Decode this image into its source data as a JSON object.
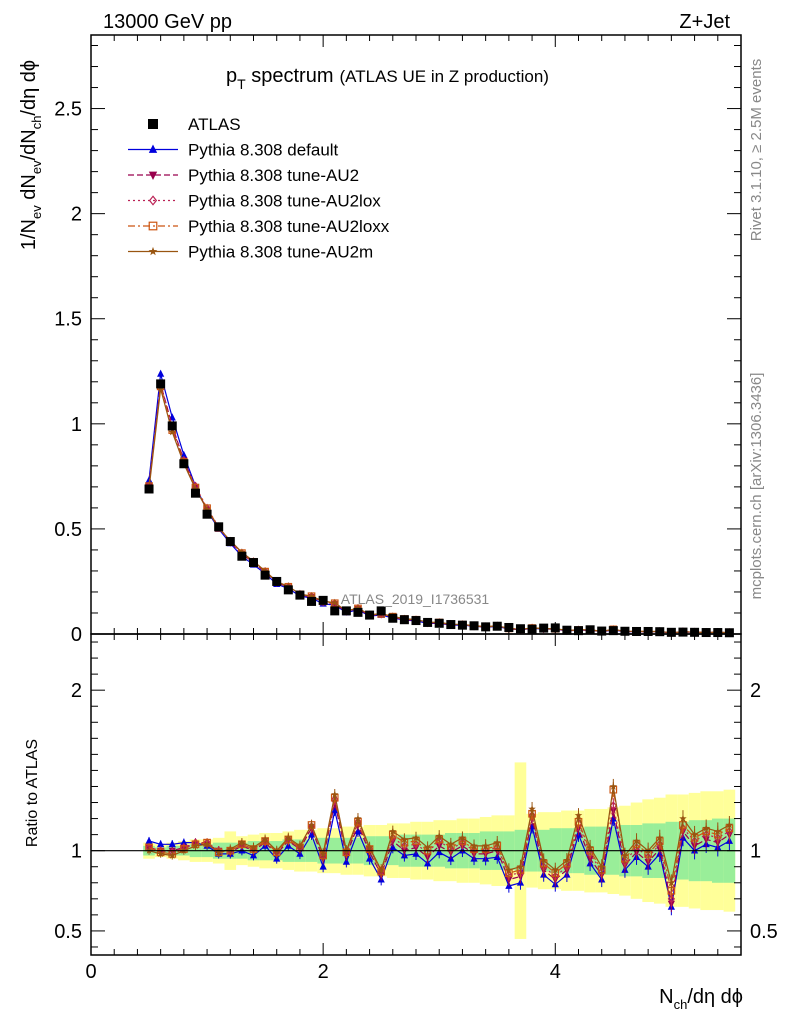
{
  "header": {
    "energy_label": "13000 GeV pp",
    "process_label": "Z+Jet",
    "rivet_label": "Rivet 3.1.10, ≥ 2.5M events",
    "mcplots_label": "mcplots.cern.ch [arXiv:1306.3436]",
    "analysis_id": "ATLAS_2019_I1736531"
  },
  "title": {
    "main": "p",
    "main_sub": "T",
    "main_rest": " spectrum",
    "paren": "(ATLAS UE in Z production)"
  },
  "axes": {
    "y_main_parts": [
      "1/N",
      "ev",
      " dN",
      "ev",
      "/dN",
      "ch",
      "/dη dϕ"
    ],
    "y_ratio": "Ratio to ATLAS",
    "x_parts": [
      "N",
      "ch",
      "/dη dϕ"
    ],
    "x_ticks": [
      "0",
      "2",
      "4"
    ],
    "y_main_ticks": [
      "0",
      "0.5",
      "1",
      "1.5",
      "2",
      "2.5"
    ],
    "y_ratio_ticks": [
      "0.5",
      "1",
      "2"
    ]
  },
  "legend": [
    {
      "label": "ATLAS",
      "color": "#000000",
      "marker": "square-filled",
      "line": "none"
    },
    {
      "label": "Pythia 8.308 default",
      "color": "#0000dd",
      "marker": "triangle-up",
      "line": "solid"
    },
    {
      "label": "Pythia 8.308 tune-AU2",
      "color": "#99004d",
      "marker": "triangle-down",
      "line": "dashed"
    },
    {
      "label": "Pythia 8.308 tune-AU2lox",
      "color": "#bb2255",
      "marker": "diamond-open",
      "line": "dotted"
    },
    {
      "label": "Pythia 8.308 tune-AU2loxx",
      "color": "#cc5511",
      "marker": "square-open",
      "line": "dashdot"
    },
    {
      "label": "Pythia 8.308 tune-AU2m",
      "color": "#995511",
      "marker": "star",
      "line": "solid"
    }
  ],
  "chart_data": {
    "type": "line",
    "x_range": [
      0,
      5.6
    ],
    "y_main_range": [
      0,
      2.85
    ],
    "y_ratio_range": [
      0.35,
      2.35
    ],
    "x": [
      0.5,
      0.6,
      0.7,
      0.8,
      0.9,
      1.0,
      1.1,
      1.2,
      1.3,
      1.4,
      1.5,
      1.6,
      1.7,
      1.8,
      1.9,
      2.0,
      2.1,
      2.2,
      2.3,
      2.4,
      2.5,
      2.6,
      2.7,
      2.8,
      2.9,
      3.0,
      3.1,
      3.2,
      3.3,
      3.4,
      3.5,
      3.6,
      3.7,
      3.8,
      3.9,
      4.0,
      4.1,
      4.2,
      4.3,
      4.4,
      4.5,
      4.6,
      4.7,
      4.8,
      4.9,
      5.0,
      5.1,
      5.2,
      5.3,
      5.4,
      5.5
    ],
    "atlas": [
      0.69,
      1.19,
      0.99,
      0.81,
      0.67,
      0.57,
      0.51,
      0.44,
      0.37,
      0.34,
      0.28,
      0.25,
      0.21,
      0.185,
      0.155,
      0.16,
      0.11,
      0.11,
      0.103,
      0.09,
      0.11,
      0.075,
      0.068,
      0.064,
      0.055,
      0.051,
      0.045,
      0.042,
      0.039,
      0.034,
      0.037,
      0.031,
      0.025,
      0.023,
      0.028,
      0.029,
      0.018,
      0.016,
      0.02,
      0.014,
      0.016,
      0.013,
      0.012,
      0.012,
      0.011,
      0.008,
      0.009,
      0.008,
      0.007,
      0.007,
      0.006
    ],
    "series": [
      {
        "name": "Pythia 8.308 default",
        "ratio": [
          1.06,
          1.04,
          1.04,
          1.05,
          1.05,
          1.03,
          0.98,
          0.98,
          1.0,
          0.97,
          1.03,
          0.95,
          1.03,
          0.98,
          1.1,
          0.9,
          1.25,
          0.93,
          1.12,
          0.95,
          0.82,
          1.02,
          0.97,
          0.98,
          0.92,
          0.99,
          0.95,
          1.0,
          0.95,
          0.95,
          0.96,
          0.78,
          0.8,
          1.15,
          0.85,
          0.79,
          0.85,
          1.1,
          0.92,
          0.82,
          1.2,
          0.88,
          0.96,
          0.9,
          0.98,
          0.65,
          1.08,
          1.0,
          1.04,
          1.02,
          1.06
        ]
      },
      {
        "name": "Pythia 8.308 tune-AU2",
        "ratio": [
          1.02,
          1.0,
          1.0,
          1.02,
          1.04,
          1.04,
          1.0,
          0.99,
          1.03,
          1.0,
          1.05,
          0.98,
          1.06,
          1.01,
          1.14,
          0.95,
          1.3,
          0.97,
          1.16,
          0.99,
          0.85,
          1.06,
          1.0,
          1.02,
          0.96,
          1.03,
          0.99,
          1.03,
          0.98,
          0.98,
          1.0,
          0.82,
          0.84,
          1.2,
          0.88,
          0.82,
          0.88,
          1.14,
          0.95,
          0.85,
          1.25,
          0.91,
          0.99,
          0.93,
          1.01,
          0.67,
          1.12,
          1.03,
          1.07,
          1.05,
          1.1
        ]
      },
      {
        "name": "Pythia 8.308 tune-AU2lox",
        "ratio": [
          1.02,
          1.0,
          0.99,
          1.02,
          1.05,
          1.05,
          1.0,
          1.0,
          1.04,
          1.01,
          1.06,
          0.99,
          1.07,
          1.02,
          1.15,
          0.97,
          1.32,
          0.99,
          1.18,
          1.01,
          0.87,
          1.08,
          1.03,
          1.04,
          0.99,
          1.06,
          1.01,
          1.05,
          1.0,
          1.0,
          1.02,
          0.85,
          0.86,
          1.22,
          0.9,
          0.84,
          0.9,
          1.17,
          0.98,
          0.87,
          1.28,
          0.93,
          1.02,
          0.96,
          1.04,
          0.7,
          1.14,
          1.06,
          1.1,
          1.08,
          1.12
        ]
      },
      {
        "name": "Pythia 8.308 tune-AU2loxx",
        "ratio": [
          1.02,
          0.99,
          0.98,
          1.01,
          1.04,
          1.05,
          0.99,
          1.0,
          1.04,
          1.01,
          1.06,
          0.99,
          1.07,
          1.02,
          1.16,
          0.97,
          1.33,
          0.99,
          1.18,
          1.01,
          0.87,
          1.1,
          1.05,
          1.06,
          1.0,
          1.07,
          1.02,
          1.06,
          1.01,
          1.01,
          1.03,
          0.86,
          0.88,
          1.23,
          0.92,
          0.86,
          0.92,
          1.18,
          1.0,
          0.88,
          1.38,
          0.95,
          1.04,
          0.98,
          1.06,
          0.75,
          1.16,
          1.08,
          1.12,
          1.1,
          1.14
        ]
      },
      {
        "name": "Pythia 8.308 tune-AU2m",
        "ratio": [
          1.0,
          0.98,
          0.97,
          1.0,
          1.03,
          1.04,
          0.99,
          1.01,
          1.05,
          1.02,
          1.07,
          1.0,
          1.08,
          1.03,
          1.16,
          0.98,
          1.35,
          1.0,
          1.2,
          1.02,
          0.88,
          1.12,
          1.07,
          1.08,
          1.02,
          1.09,
          1.04,
          1.08,
          1.03,
          1.03,
          1.05,
          0.88,
          0.9,
          1.26,
          0.94,
          0.88,
          0.94,
          1.22,
          1.02,
          0.9,
          1.4,
          0.97,
          1.06,
          1.0,
          1.08,
          0.8,
          1.2,
          1.1,
          1.14,
          1.12,
          1.16
        ]
      }
    ],
    "band_stat": [
      0.03,
      0.02,
      0.03,
      0.03,
      0.04,
      0.04,
      0.05,
      0.05,
      0.05,
      0.06,
      0.06,
      0.06,
      0.07,
      0.07,
      0.07,
      0.08,
      0.08,
      0.08,
      0.08,
      0.09,
      0.09,
      0.09,
      0.1,
      0.1,
      0.1,
      0.1,
      0.11,
      0.11,
      0.11,
      0.12,
      0.12,
      0.12,
      0.13,
      0.13,
      0.13,
      0.14,
      0.14,
      0.14,
      0.15,
      0.15,
      0.15,
      0.16,
      0.16,
      0.17,
      0.17,
      0.18,
      0.18,
      0.19,
      0.19,
      0.2,
      0.2
    ],
    "band_tot": [
      0.05,
      0.04,
      0.05,
      0.06,
      0.07,
      0.07,
      0.08,
      0.12,
      0.09,
      0.1,
      0.11,
      0.11,
      0.12,
      0.13,
      0.13,
      0.14,
      0.14,
      0.15,
      0.15,
      0.16,
      0.16,
      0.17,
      0.17,
      0.18,
      0.18,
      0.19,
      0.19,
      0.2,
      0.2,
      0.21,
      0.22,
      0.22,
      0.55,
      0.23,
      0.24,
      0.24,
      0.25,
      0.25,
      0.26,
      0.26,
      0.27,
      0.28,
      0.3,
      0.32,
      0.33,
      0.35,
      0.35,
      0.36,
      0.37,
      0.37,
      0.38
    ]
  }
}
